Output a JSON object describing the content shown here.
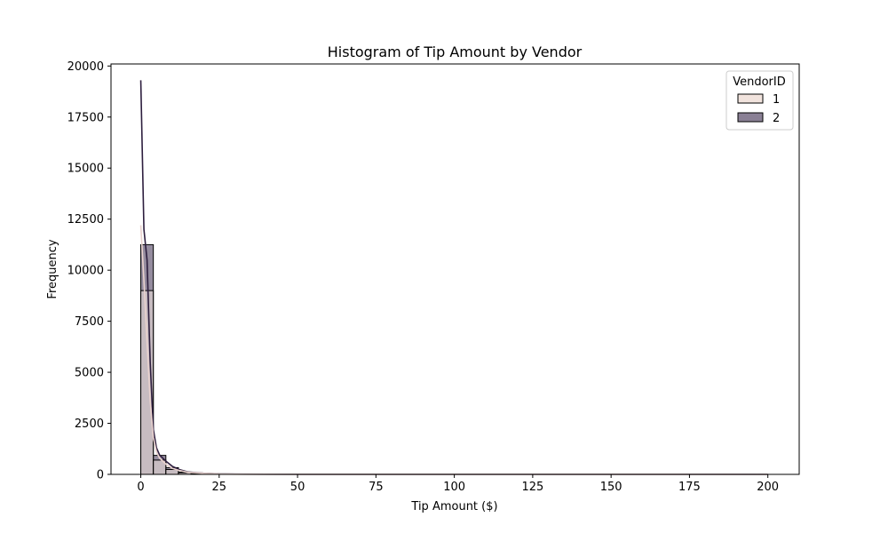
{
  "chart_data": {
    "type": "histogram",
    "title": "Histogram of Tip Amount by Vendor",
    "xlabel": "Tip Amount ($)",
    "ylabel": "Frequency",
    "xlim": [
      -9.5,
      210
    ],
    "ylim": [
      0,
      20100
    ],
    "x_ticks": [
      0,
      25,
      50,
      75,
      100,
      125,
      150,
      175,
      200
    ],
    "y_ticks": [
      0,
      2500,
      5000,
      7500,
      10000,
      12500,
      15000,
      17500,
      20000
    ],
    "bin_edges": [
      0,
      4,
      8,
      12,
      16,
      20,
      24,
      28,
      32,
      36,
      40,
      200
    ],
    "legend": {
      "title": "VendorID",
      "position": "top-right"
    },
    "series": [
      {
        "name": "1",
        "color": "#f1e3dd",
        "values": [
          9000,
          700,
          240,
          80,
          30,
          12,
          6,
          3,
          2,
          1,
          0
        ],
        "kde": [
          [
            0,
            12200
          ],
          [
            1,
            9500
          ],
          [
            2,
            6500
          ],
          [
            3,
            3600
          ],
          [
            4,
            1800
          ],
          [
            5,
            1100
          ],
          [
            6,
            800
          ],
          [
            8,
            500
          ],
          [
            10,
            300
          ],
          [
            12,
            200
          ],
          [
            15,
            100
          ],
          [
            20,
            50
          ],
          [
            25,
            20
          ],
          [
            30,
            10
          ],
          [
            50,
            3
          ],
          [
            200,
            0
          ]
        ]
      },
      {
        "name": "2",
        "color": "#8a8095",
        "values": [
          11250,
          930,
          330,
          110,
          40,
          15,
          8,
          4,
          2,
          1,
          0
        ],
        "kde": [
          [
            0,
            19300
          ],
          [
            1,
            12000
          ],
          [
            2,
            10500
          ],
          [
            3,
            5500
          ],
          [
            4,
            2200
          ],
          [
            5,
            1300
          ],
          [
            6,
            950
          ],
          [
            8,
            650
          ],
          [
            10,
            400
          ],
          [
            12,
            250
          ],
          [
            15,
            120
          ],
          [
            20,
            60
          ],
          [
            25,
            25
          ],
          [
            30,
            12
          ],
          [
            50,
            4
          ],
          [
            200,
            0
          ]
        ]
      }
    ],
    "kde_colors": {
      "1": "#e9d2ce",
      "2": "#2d1e3e"
    }
  }
}
